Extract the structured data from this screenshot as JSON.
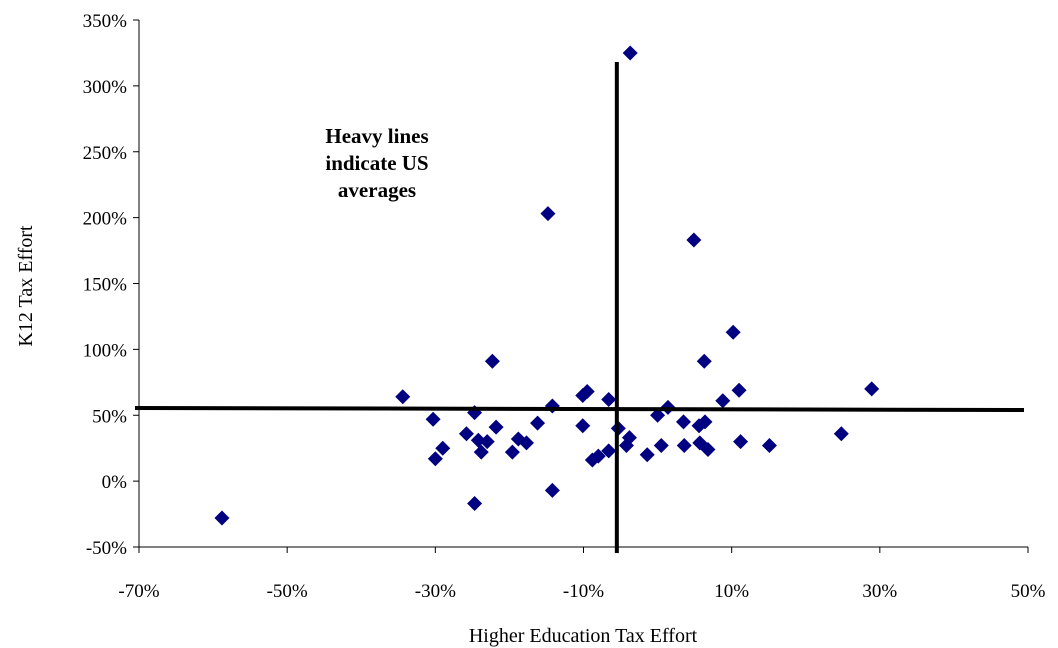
{
  "chart_data": {
    "type": "scatter",
    "xlabel": "Higher Education Tax Effort",
    "ylabel": "K12 Tax Effort",
    "xlim": [
      -70,
      50
    ],
    "ylim": [
      -50,
      350
    ],
    "x_ticks": [
      "-70%",
      "-50%",
      "-30%",
      "-10%",
      "10%",
      "30%",
      "50%"
    ],
    "y_ticks": [
      "-50%",
      "0%",
      "50%",
      "100%",
      "150%",
      "200%",
      "250%",
      "300%",
      "350%"
    ],
    "grid": false,
    "legend": "none",
    "marker": "diamond",
    "marker_color": "#000080",
    "reference_lines": {
      "us_average_x": -5.5,
      "us_average_y": 54
    },
    "annotation": [
      "Heavy lines",
      "indicate US",
      "averages"
    ],
    "points": [
      {
        "x": -58.8,
        "y": -28
      },
      {
        "x": -34.4,
        "y": 64
      },
      {
        "x": -30.3,
        "y": 47
      },
      {
        "x": -30.0,
        "y": 17
      },
      {
        "x": -29.0,
        "y": 25
      },
      {
        "x": -25.8,
        "y": 36
      },
      {
        "x": -24.7,
        "y": 52
      },
      {
        "x": -24.7,
        "y": -17
      },
      {
        "x": -24.2,
        "y": 31
      },
      {
        "x": -23.8,
        "y": 22
      },
      {
        "x": -23.0,
        "y": 30
      },
      {
        "x": -22.3,
        "y": 91
      },
      {
        "x": -21.8,
        "y": 41
      },
      {
        "x": -19.6,
        "y": 22
      },
      {
        "x": -18.8,
        "y": 32
      },
      {
        "x": -17.7,
        "y": 29
      },
      {
        "x": -16.2,
        "y": 44
      },
      {
        "x": -14.8,
        "y": 203
      },
      {
        "x": -14.2,
        "y": 57
      },
      {
        "x": -14.2,
        "y": -7
      },
      {
        "x": -10.1,
        "y": 65
      },
      {
        "x": -10.1,
        "y": 42
      },
      {
        "x": -9.5,
        "y": 68
      },
      {
        "x": -8.8,
        "y": 16
      },
      {
        "x": -8.0,
        "y": 19
      },
      {
        "x": -6.6,
        "y": 23
      },
      {
        "x": -6.6,
        "y": 62
      },
      {
        "x": -5.3,
        "y": 40
      },
      {
        "x": -4.2,
        "y": 27
      },
      {
        "x": -3.8,
        "y": 33
      },
      {
        "x": -3.7,
        "y": 325
      },
      {
        "x": -1.4,
        "y": 20
      },
      {
        "x": 0.0,
        "y": 50
      },
      {
        "x": 0.5,
        "y": 27
      },
      {
        "x": 1.4,
        "y": 56
      },
      {
        "x": 3.5,
        "y": 45
      },
      {
        "x": 3.6,
        "y": 27
      },
      {
        "x": 4.9,
        "y": 183
      },
      {
        "x": 5.6,
        "y": 42
      },
      {
        "x": 5.7,
        "y": 29
      },
      {
        "x": 6.3,
        "y": 91
      },
      {
        "x": 6.4,
        "y": 45
      },
      {
        "x": 6.8,
        "y": 24
      },
      {
        "x": 8.8,
        "y": 61
      },
      {
        "x": 10.2,
        "y": 113
      },
      {
        "x": 11.0,
        "y": 69
      },
      {
        "x": 11.2,
        "y": 30
      },
      {
        "x": 15.1,
        "y": 27
      },
      {
        "x": 24.8,
        "y": 36
      },
      {
        "x": 28.9,
        "y": 70
      }
    ]
  }
}
